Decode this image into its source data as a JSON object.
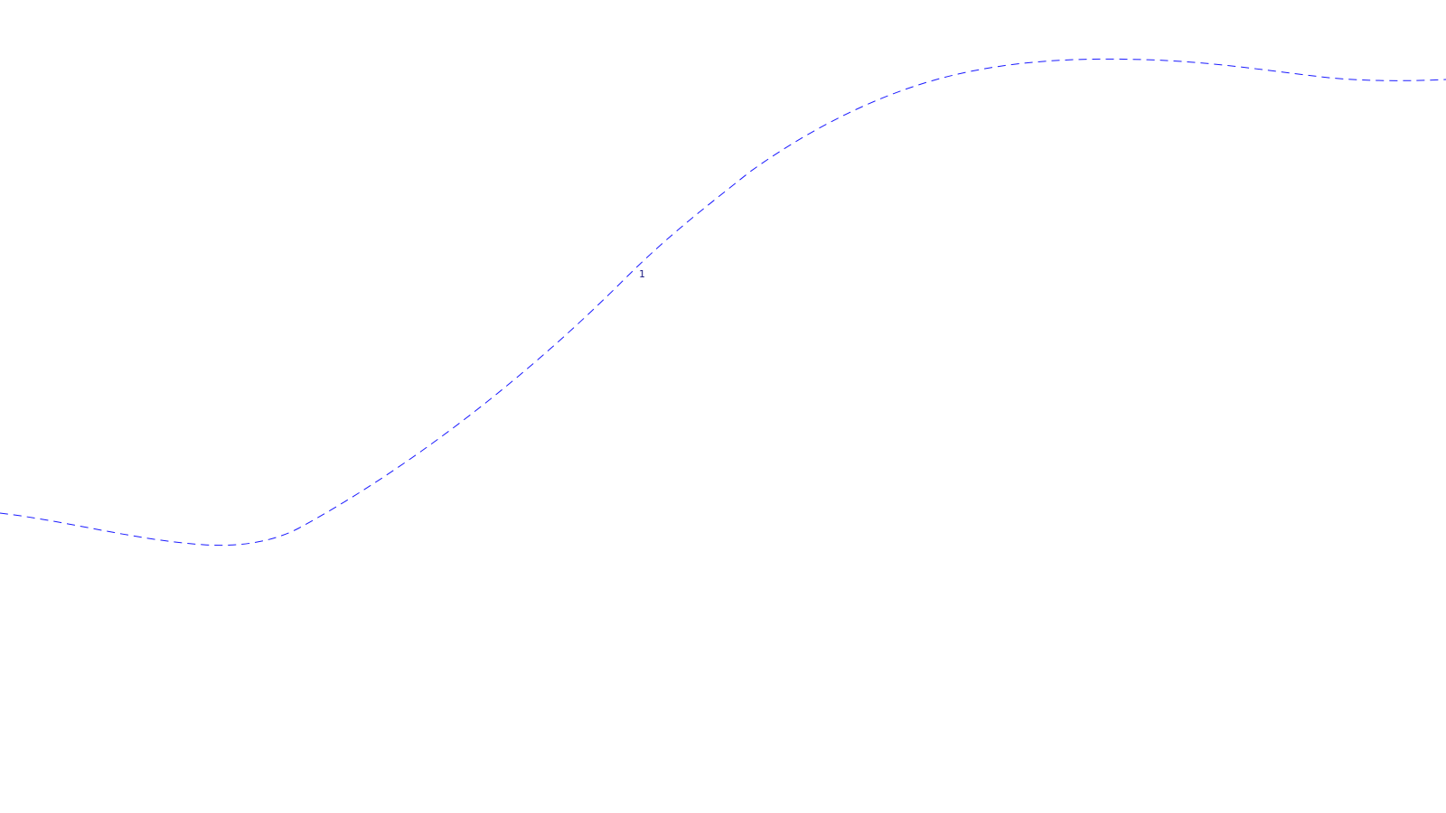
{
  "diagram": {
    "curve": {
      "label": "1",
      "color": "#1a1aff",
      "label_color": "#1a1a80"
    }
  }
}
